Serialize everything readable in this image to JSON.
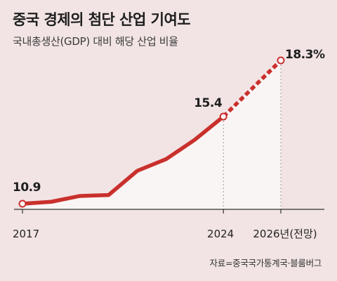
{
  "title": "중국 경제의 첨단 산업 기여도",
  "subtitle": "국내총생산(GDP) 대비 해당 산업 비율",
  "source": "자료=중국국가통계국·블룸버그",
  "colors": {
    "line": "#c9302c",
    "area": "#faf5f5",
    "background": "#f2e4e4",
    "axis": "#333333"
  },
  "chart_data": {
    "type": "line",
    "title": "중국 경제의 첨단 산업 기여도",
    "subtitle": "국내총생산(GDP) 대비 해당 산업 비율",
    "unit": "%",
    "x": [
      2017,
      2018,
      2019,
      2020,
      2021,
      2022,
      2023,
      2024,
      2026
    ],
    "y": [
      10.9,
      11.0,
      11.3,
      11.35,
      12.6,
      13.2,
      14.2,
      15.4,
      18.3
    ],
    "projection_from_index": 7,
    "tick_labels": [
      "2017",
      "2024",
      "2026년(전망)"
    ],
    "tick_x": [
      2017,
      2024,
      2026
    ],
    "data_labels": [
      {
        "x": 2017,
        "text": "10.9"
      },
      {
        "x": 2024,
        "text": "15.4"
      },
      {
        "x": 2026,
        "text": "18.3%"
      }
    ],
    "xlim": [
      2017,
      2026
    ],
    "ylim": [
      10.0,
      18.9
    ],
    "grid": false,
    "legend": "none"
  }
}
